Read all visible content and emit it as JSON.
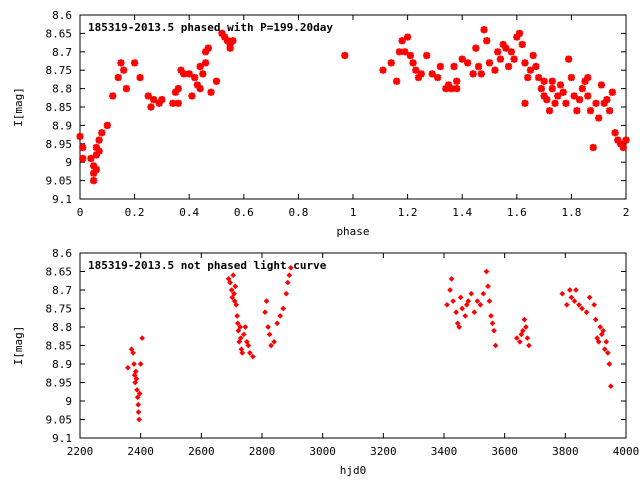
{
  "accent_color": "#ff0000",
  "chart_data": [
    {
      "type": "scatter",
      "title": "185319-2013.5 phased with P=199.20day",
      "xlabel": "phase",
      "ylabel": "I[mag]",
      "xlim": [
        0,
        2
      ],
      "ylim": [
        9.1,
        8.6
      ],
      "y_inverted": true,
      "xticks": [
        "0",
        "0.2",
        "0.4",
        "0.6",
        "0.8",
        "1",
        "1.2",
        "1.4",
        "1.6",
        "1.8",
        "2"
      ],
      "yticks": [
        "8.6",
        "8.65",
        "8.7",
        "8.75",
        "8.8",
        "8.85",
        "8.9",
        "8.95",
        "9",
        "9.05",
        "9.1"
      ],
      "marker": "star",
      "points": [
        [
          0.0,
          8.93
        ],
        [
          0.01,
          8.96
        ],
        [
          0.01,
          8.99
        ],
        [
          0.04,
          8.99
        ],
        [
          0.05,
          9.01
        ],
        [
          0.05,
          9.03
        ],
        [
          0.05,
          9.05
        ],
        [
          0.06,
          9.02
        ],
        [
          0.06,
          8.98
        ],
        [
          0.06,
          8.96
        ],
        [
          0.07,
          8.94
        ],
        [
          0.07,
          8.97
        ],
        [
          0.08,
          8.92
        ],
        [
          0.1,
          8.9
        ],
        [
          0.12,
          8.82
        ],
        [
          0.14,
          8.77
        ],
        [
          0.15,
          8.73
        ],
        [
          0.16,
          8.75
        ],
        [
          0.17,
          8.8
        ],
        [
          0.2,
          8.73
        ],
        [
          0.22,
          8.77
        ],
        [
          0.25,
          8.82
        ],
        [
          0.26,
          8.85
        ],
        [
          0.27,
          8.83
        ],
        [
          0.29,
          8.84
        ],
        [
          0.3,
          8.83
        ],
        [
          0.34,
          8.84
        ],
        [
          0.35,
          8.81
        ],
        [
          0.36,
          8.8
        ],
        [
          0.36,
          8.84
        ],
        [
          0.37,
          8.75
        ],
        [
          0.38,
          8.76
        ],
        [
          0.4,
          8.76
        ],
        [
          0.41,
          8.82
        ],
        [
          0.42,
          8.77
        ],
        [
          0.43,
          8.79
        ],
        [
          0.44,
          8.74
        ],
        [
          0.44,
          8.8
        ],
        [
          0.45,
          8.76
        ],
        [
          0.46,
          8.73
        ],
        [
          0.46,
          8.7
        ],
        [
          0.47,
          8.69
        ],
        [
          0.48,
          8.81
        ],
        [
          0.5,
          8.78
        ],
        [
          0.52,
          8.65
        ],
        [
          0.53,
          8.66
        ],
        [
          0.54,
          8.67
        ],
        [
          0.55,
          8.68
        ],
        [
          0.56,
          8.67
        ],
        [
          0.55,
          8.69
        ],
        [
          0.97,
          8.71
        ],
        [
          1.11,
          8.75
        ],
        [
          1.14,
          8.73
        ],
        [
          1.16,
          8.78
        ],
        [
          1.17,
          8.7
        ],
        [
          1.18,
          8.67
        ],
        [
          1.19,
          8.7
        ],
        [
          1.2,
          8.66
        ],
        [
          1.21,
          8.71
        ],
        [
          1.22,
          8.73
        ],
        [
          1.23,
          8.75
        ],
        [
          1.24,
          8.77
        ],
        [
          1.25,
          8.76
        ],
        [
          1.27,
          8.71
        ],
        [
          1.29,
          8.76
        ],
        [
          1.31,
          8.77
        ],
        [
          1.32,
          8.74
        ],
        [
          1.34,
          8.8
        ],
        [
          1.35,
          8.79
        ],
        [
          1.36,
          8.8
        ],
        [
          1.37,
          8.74
        ],
        [
          1.38,
          8.78
        ],
        [
          1.38,
          8.8
        ],
        [
          1.4,
          8.72
        ],
        [
          1.42,
          8.73
        ],
        [
          1.44,
          8.76
        ],
        [
          1.45,
          8.69
        ],
        [
          1.46,
          8.74
        ],
        [
          1.47,
          8.76
        ],
        [
          1.48,
          8.64
        ],
        [
          1.49,
          8.67
        ],
        [
          1.5,
          8.73
        ],
        [
          1.52,
          8.75
        ],
        [
          1.53,
          8.7
        ],
        [
          1.54,
          8.72
        ],
        [
          1.55,
          8.68
        ],
        [
          1.56,
          8.69
        ],
        [
          1.57,
          8.74
        ],
        [
          1.58,
          8.7
        ],
        [
          1.59,
          8.72
        ],
        [
          1.6,
          8.66
        ],
        [
          1.61,
          8.65
        ],
        [
          1.62,
          8.68
        ],
        [
          1.63,
          8.73
        ],
        [
          1.63,
          8.84
        ],
        [
          1.64,
          8.77
        ],
        [
          1.65,
          8.75
        ],
        [
          1.66,
          8.71
        ],
        [
          1.67,
          8.74
        ],
        [
          1.68,
          8.77
        ],
        [
          1.69,
          8.8
        ],
        [
          1.7,
          8.78
        ],
        [
          1.7,
          8.82
        ],
        [
          1.71,
          8.83
        ],
        [
          1.72,
          8.86
        ],
        [
          1.73,
          8.8
        ],
        [
          1.73,
          8.78
        ],
        [
          1.74,
          8.84
        ],
        [
          1.75,
          8.82
        ],
        [
          1.76,
          8.79
        ],
        [
          1.77,
          8.81
        ],
        [
          1.78,
          8.84
        ],
        [
          1.79,
          8.72
        ],
        [
          1.8,
          8.77
        ],
        [
          1.81,
          8.82
        ],
        [
          1.82,
          8.86
        ],
        [
          1.83,
          8.83
        ],
        [
          1.84,
          8.8
        ],
        [
          1.85,
          8.78
        ],
        [
          1.86,
          8.77
        ],
        [
          1.86,
          8.82
        ],
        [
          1.87,
          8.86
        ],
        [
          1.88,
          8.96
        ],
        [
          1.89,
          8.84
        ],
        [
          1.9,
          8.88
        ],
        [
          1.91,
          8.79
        ],
        [
          1.92,
          8.84
        ],
        [
          1.93,
          8.83
        ],
        [
          1.94,
          8.86
        ],
        [
          1.95,
          8.81
        ],
        [
          1.96,
          8.92
        ],
        [
          1.97,
          8.94
        ],
        [
          1.98,
          8.95
        ],
        [
          1.99,
          8.96
        ],
        [
          2.0,
          8.94
        ]
      ]
    },
    {
      "type": "scatter",
      "title": "185319-2013.5 not phased light curve",
      "xlabel": "hjd0",
      "ylabel": "I[mag]",
      "xlim": [
        2200,
        4000
      ],
      "ylim": [
        9.1,
        8.6
      ],
      "y_inverted": true,
      "xticks": [
        "2200",
        "2400",
        "2600",
        "2800",
        "3000",
        "3200",
        "3400",
        "3600",
        "3800",
        "4000"
      ],
      "yticks": [
        "8.6",
        "8.65",
        "8.7",
        "8.75",
        "8.8",
        "8.85",
        "8.9",
        "8.95",
        "9",
        "9.05",
        "9.1"
      ],
      "marker": "diamond",
      "points": [
        [
          2358,
          8.91
        ],
        [
          2370,
          8.86
        ],
        [
          2375,
          8.87
        ],
        [
          2378,
          8.9
        ],
        [
          2380,
          8.93
        ],
        [
          2382,
          8.95
        ],
        [
          2384,
          8.92
        ],
        [
          2386,
          8.94
        ],
        [
          2388,
          8.97
        ],
        [
          2390,
          8.99
        ],
        [
          2392,
          9.01
        ],
        [
          2393,
          9.03
        ],
        [
          2395,
          9.05
        ],
        [
          2397,
          8.98
        ],
        [
          2400,
          8.9
        ],
        [
          2405,
          8.83
        ],
        [
          2690,
          8.67
        ],
        [
          2695,
          8.68
        ],
        [
          2700,
          8.7
        ],
        [
          2702,
          8.72
        ],
        [
          2705,
          8.66
        ],
        [
          2708,
          8.71
        ],
        [
          2710,
          8.73
        ],
        [
          2712,
          8.69
        ],
        [
          2715,
          8.74
        ],
        [
          2718,
          8.77
        ],
        [
          2720,
          8.79
        ],
        [
          2722,
          8.81
        ],
        [
          2725,
          8.84
        ],
        [
          2728,
          8.8
        ],
        [
          2730,
          8.83
        ],
        [
          2732,
          8.86
        ],
        [
          2735,
          8.87
        ],
        [
          2740,
          8.82
        ],
        [
          2745,
          8.8
        ],
        [
          2750,
          8.84
        ],
        [
          2755,
          8.85
        ],
        [
          2760,
          8.87
        ],
        [
          2770,
          8.88
        ],
        [
          2810,
          8.76
        ],
        [
          2815,
          8.73
        ],
        [
          2820,
          8.8
        ],
        [
          2825,
          8.82
        ],
        [
          2830,
          8.85
        ],
        [
          2840,
          8.84
        ],
        [
          2850,
          8.79
        ],
        [
          2860,
          8.77
        ],
        [
          2870,
          8.75
        ],
        [
          2880,
          8.71
        ],
        [
          2885,
          8.68
        ],
        [
          2890,
          8.66
        ],
        [
          2895,
          8.64
        ],
        [
          3410,
          8.74
        ],
        [
          3420,
          8.7
        ],
        [
          3425,
          8.67
        ],
        [
          3430,
          8.73
        ],
        [
          3440,
          8.76
        ],
        [
          3445,
          8.79
        ],
        [
          3450,
          8.8
        ],
        [
          3455,
          8.72
        ],
        [
          3460,
          8.75
        ],
        [
          3470,
          8.77
        ],
        [
          3475,
          8.74
        ],
        [
          3480,
          8.73
        ],
        [
          3490,
          8.71
        ],
        [
          3500,
          8.76
        ],
        [
          3510,
          8.73
        ],
        [
          3520,
          8.74
        ],
        [
          3530,
          8.71
        ],
        [
          3540,
          8.65
        ],
        [
          3545,
          8.69
        ],
        [
          3550,
          8.73
        ],
        [
          3555,
          8.77
        ],
        [
          3560,
          8.79
        ],
        [
          3565,
          8.81
        ],
        [
          3570,
          8.85
        ],
        [
          3640,
          8.83
        ],
        [
          3650,
          8.84
        ],
        [
          3655,
          8.82
        ],
        [
          3660,
          8.81
        ],
        [
          3665,
          8.78
        ],
        [
          3670,
          8.8
        ],
        [
          3675,
          8.83
        ],
        [
          3680,
          8.85
        ],
        [
          3790,
          8.71
        ],
        [
          3805,
          8.74
        ],
        [
          3815,
          8.7
        ],
        [
          3820,
          8.72
        ],
        [
          3830,
          8.73
        ],
        [
          3835,
          8.7
        ],
        [
          3845,
          8.74
        ],
        [
          3855,
          8.75
        ],
        [
          3870,
          8.76
        ],
        [
          3880,
          8.72
        ],
        [
          3895,
          8.74
        ],
        [
          3900,
          8.78
        ],
        [
          3905,
          8.83
        ],
        [
          3910,
          8.84
        ],
        [
          3915,
          8.8
        ],
        [
          3920,
          8.82
        ],
        [
          3925,
          8.81
        ],
        [
          3930,
          8.86
        ],
        [
          3935,
          8.84
        ],
        [
          3940,
          8.87
        ],
        [
          3945,
          8.9
        ],
        [
          3950,
          8.96
        ]
      ]
    }
  ]
}
